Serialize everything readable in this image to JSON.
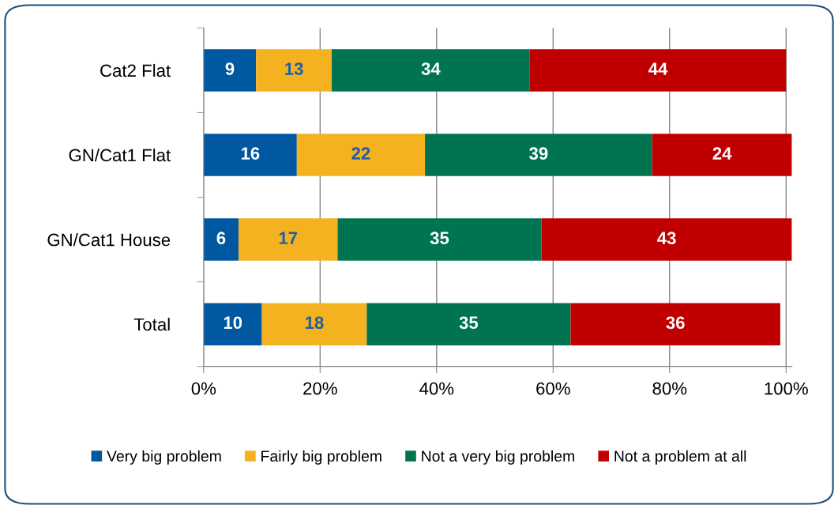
{
  "chart_data": {
    "type": "bar",
    "orientation": "horizontal",
    "stacked": true,
    "categories": [
      "Cat2 Flat",
      "GN/Cat1 Flat",
      "GN/Cat1 House",
      "Total"
    ],
    "series": [
      {
        "name": "Very big problem",
        "color": "#0058a0",
        "values": [
          9,
          16,
          6,
          10
        ]
      },
      {
        "name": "Fairly big problem",
        "color": "#f4b120",
        "values": [
          13,
          22,
          17,
          18
        ]
      },
      {
        "name": "Not a very big problem",
        "color": "#007350",
        "values": [
          34,
          39,
          35,
          35
        ]
      },
      {
        "name": "Not a problem at all",
        "color": "#c00000",
        "values": [
          44,
          24,
          43,
          36
        ]
      }
    ],
    "xlim": [
      0,
      101
    ],
    "xticks": [
      {
        "value": 0,
        "label": "0%"
      },
      {
        "value": 20,
        "label": "20%"
      },
      {
        "value": 40,
        "label": "40%"
      },
      {
        "value": 60,
        "label": "60%"
      },
      {
        "value": 80,
        "label": "80%"
      },
      {
        "value": 100,
        "label": "100%"
      }
    ],
    "grid": "x",
    "legend": "bottom",
    "data_labels": true
  }
}
